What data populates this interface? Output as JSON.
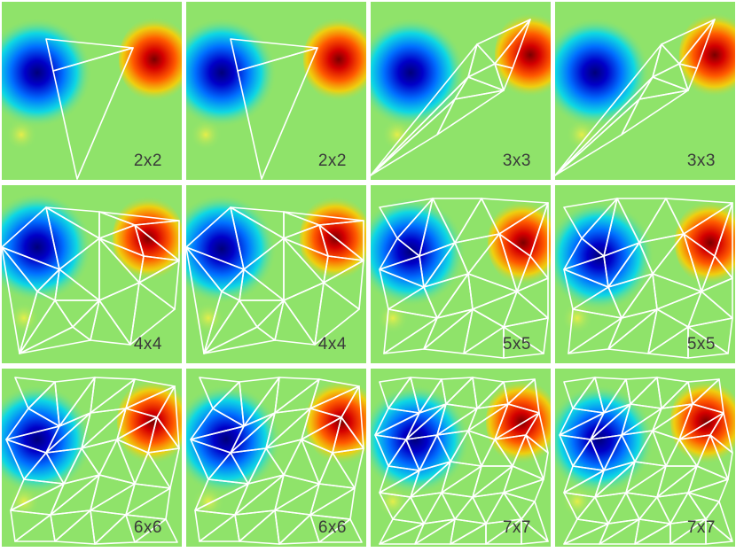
{
  "panels": [
    {
      "label": "2x2",
      "mesh": "2x2"
    },
    {
      "label": "2x2",
      "mesh": "2x2"
    },
    {
      "label": "3x3",
      "mesh": "3x3"
    },
    {
      "label": "3x3",
      "mesh": "3x3"
    },
    {
      "label": "4x4",
      "mesh": "4x4"
    },
    {
      "label": "4x4",
      "mesh": "4x4"
    },
    {
      "label": "5x5",
      "mesh": "5x5"
    },
    {
      "label": "5x5",
      "mesh": "5x5"
    },
    {
      "label": "6x6",
      "mesh": "6x6"
    },
    {
      "label": "6x6",
      "mesh": "6x6"
    },
    {
      "label": "7x7",
      "mesh": "7x7"
    },
    {
      "label": "7x7",
      "mesh": "7x7"
    }
  ],
  "colors": {
    "background_field": "#8fe36a",
    "cold_core": "#00007f",
    "hot_core": "#7f0000",
    "mesh_stroke": "#ffffff",
    "separator": "#ffffff"
  }
}
